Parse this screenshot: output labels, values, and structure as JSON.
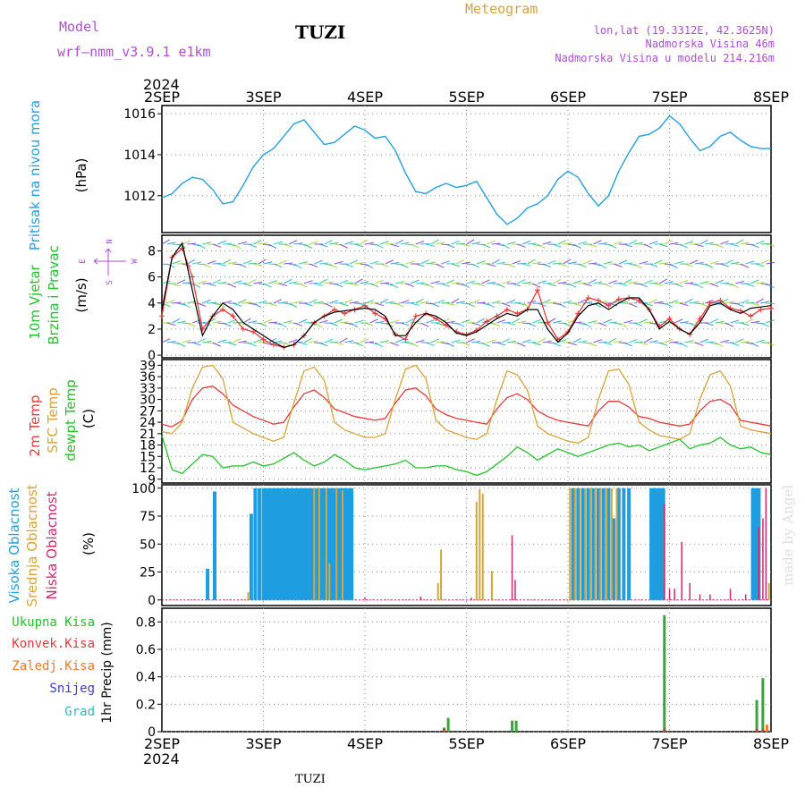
{
  "header": {
    "model_label": "Model",
    "model_name": "wrf—nmm_v3.9.1  e1km",
    "station": "TUZI",
    "meteogram": "Meteogram",
    "lonlat": "lon,lat (19.3312E, 42.3625N)",
    "altitude": "Nadmorska Visina 46m",
    "model_altitude": "Nadmorska Visina u modelu 214.216m",
    "year_top": "2024",
    "year_bottom": "2024",
    "footer_station": "TUZI",
    "credit": "made by Angel"
  },
  "colors": {
    "pressure": "#22a0e0",
    "wind_speed": "#000000",
    "wind_gust": "#e83030",
    "t2m": "#e83b3b",
    "sfc": "#d9a23a",
    "dewpt": "#22c22a",
    "high_cloud": "#1e9ee0",
    "mid_cloud": "#d4a63a",
    "low_cloud": "#d22a6e",
    "total_precip": "#3aa33a",
    "conv_precip": "#e03030",
    "froz_precip": "#f07a30",
    "snow": "#3b3bdb",
    "graupel": "#2ac0c0"
  },
  "chart_data": [
    {
      "type": "line",
      "panel": "pressure",
      "ylabel": [
        "Pritisak na nivou mora",
        "(hPa)"
      ],
      "ylim": [
        1010.2,
        1016.4
      ],
      "yticks": [
        "1012",
        "1014",
        "1016"
      ],
      "ytick_values": [
        1012,
        1014,
        1016
      ],
      "grid": true,
      "x_days": [
        2,
        2.1,
        2.2,
        2.3,
        2.4,
        2.5,
        2.6,
        2.7,
        2.8,
        2.9,
        3.0,
        3.1,
        3.2,
        3.3,
        3.4,
        3.5,
        3.6,
        3.7,
        3.8,
        3.9,
        4.0,
        4.1,
        4.2,
        4.3,
        4.4,
        4.5,
        4.6,
        4.7,
        4.8,
        4.9,
        5.0,
        5.1,
        5.2,
        5.3,
        5.4,
        5.5,
        5.6,
        5.7,
        5.8,
        5.9,
        6.0,
        6.1,
        6.2,
        6.3,
        6.4,
        6.5,
        6.6,
        6.7,
        6.8,
        6.9,
        7.0,
        7.1,
        7.2,
        7.3,
        7.4,
        7.5,
        7.6,
        7.7,
        7.8,
        7.9,
        8.0
      ],
      "values": [
        1011.9,
        1012.1,
        1012.6,
        1012.9,
        1012.8,
        1012.3,
        1011.6,
        1011.7,
        1012.5,
        1013.4,
        1014.0,
        1014.3,
        1014.9,
        1015.5,
        1015.7,
        1015.1,
        1014.5,
        1014.6,
        1015.0,
        1015.4,
        1015.2,
        1014.8,
        1014.9,
        1014.2,
        1013.1,
        1012.2,
        1012.1,
        1012.4,
        1012.6,
        1012.4,
        1012.5,
        1012.7,
        1011.9,
        1011.1,
        1010.6,
        1010.9,
        1011.4,
        1011.6,
        1012.0,
        1012.8,
        1013.2,
        1012.9,
        1012.1,
        1011.5,
        1012.0,
        1013.2,
        1014.1,
        1014.9,
        1015.0,
        1015.3,
        1015.9,
        1015.5,
        1014.8,
        1014.2,
        1014.4,
        1014.9,
        1015.1,
        1014.7,
        1014.4,
        1014.3,
        1014.3
      ]
    },
    {
      "type": "line",
      "panel": "wind",
      "ylabel": [
        "10m Vjetar",
        "Brzina i Pravac",
        "(m/s)"
      ],
      "ylim": [
        -0.2,
        9.2
      ],
      "yticks": [
        "0",
        "2",
        "4",
        "6",
        "8"
      ],
      "ytick_values": [
        0,
        2,
        4,
        6,
        8
      ],
      "compass": [
        "N",
        "E",
        "S",
        "W"
      ],
      "grid": true,
      "x_days": [
        2,
        2.1,
        2.2,
        2.3,
        2.4,
        2.5,
        2.6,
        2.7,
        2.8,
        2.9,
        3.0,
        3.1,
        3.2,
        3.3,
        3.4,
        3.5,
        3.6,
        3.7,
        3.8,
        3.9,
        4.0,
        4.1,
        4.2,
        4.3,
        4.4,
        4.5,
        4.6,
        4.7,
        4.8,
        4.9,
        5.0,
        5.1,
        5.2,
        5.3,
        5.4,
        5.5,
        5.6,
        5.7,
        5.8,
        5.9,
        6.0,
        6.1,
        6.2,
        6.3,
        6.4,
        6.5,
        6.6,
        6.7,
        6.8,
        6.9,
        7.0,
        7.1,
        7.2,
        7.3,
        7.4,
        7.5,
        7.6,
        7.7,
        7.8,
        7.9,
        8.0
      ],
      "series": [
        {
          "role": "speed",
          "values": [
            3.5,
            7.5,
            8.6,
            5.0,
            1.5,
            3.0,
            4.0,
            3.5,
            2.5,
            2.0,
            1.5,
            1.0,
            0.6,
            0.8,
            1.5,
            2.5,
            3.0,
            3.3,
            3.4,
            3.5,
            3.6,
            3.5,
            3.0,
            1.5,
            1.5,
            2.5,
            3.2,
            3.0,
            2.5,
            1.7,
            1.5,
            1.8,
            2.3,
            2.8,
            3.2,
            3.0,
            3.5,
            3.5,
            2.0,
            1.0,
            1.7,
            3.0,
            3.8,
            4.0,
            3.5,
            4.0,
            4.4,
            4.4,
            3.5,
            2.0,
            2.6,
            2.0,
            1.6,
            2.5,
            3.8,
            4.0,
            3.5,
            3.2,
            3.6,
            3.7,
            3.8
          ]
        },
        {
          "role": "gust",
          "values": [
            3.0,
            7.5,
            8.2,
            6.0,
            2.0,
            3.0,
            3.5,
            3.0,
            2.0,
            1.8,
            1.2,
            0.8,
            0.6,
            0.8,
            1.5,
            2.5,
            3.0,
            3.5,
            3.2,
            3.5,
            3.8,
            3.2,
            2.8,
            1.6,
            1.2,
            3.0,
            3.2,
            2.8,
            2.3,
            1.8,
            1.6,
            1.9,
            2.6,
            3.0,
            3.5,
            3.2,
            3.5,
            5.0,
            2.5,
            1.2,
            1.8,
            3.2,
            4.4,
            4.2,
            3.8,
            4.3,
            4.4,
            4.2,
            3.5,
            2.2,
            2.8,
            2.0,
            1.6,
            2.8,
            4.0,
            4.2,
            3.6,
            3.4,
            3.0,
            3.5,
            3.6
          ]
        }
      ]
    },
    {
      "type": "line",
      "panel": "temperature",
      "ylabel": [
        "2m Temp",
        "SFC Temp",
        "dewpt Temp",
        "(C)"
      ],
      "ylim": [
        8,
        40.5
      ],
      "yticks": [
        "9",
        "12",
        "15",
        "18",
        "21",
        "24",
        "27",
        "30",
        "33",
        "36",
        "39"
      ],
      "ytick_values": [
        9,
        12,
        15,
        18,
        21,
        24,
        27,
        30,
        33,
        36,
        39
      ],
      "grid": true,
      "x_days": [
        2,
        2.1,
        2.2,
        2.3,
        2.4,
        2.5,
        2.6,
        2.7,
        2.8,
        2.9,
        3.0,
        3.1,
        3.2,
        3.3,
        3.4,
        3.5,
        3.6,
        3.7,
        3.8,
        3.9,
        4.0,
        4.1,
        4.2,
        4.3,
        4.4,
        4.5,
        4.6,
        4.7,
        4.8,
        4.9,
        5.0,
        5.1,
        5.2,
        5.3,
        5.4,
        5.5,
        5.6,
        5.7,
        5.8,
        5.9,
        6.0,
        6.1,
        6.2,
        6.3,
        6.4,
        6.5,
        6.6,
        6.7,
        6.8,
        6.9,
        7.0,
        7.1,
        7.2,
        7.3,
        7.4,
        7.5,
        7.6,
        7.7,
        7.8,
        7.9,
        8.0
      ],
      "series": [
        {
          "role": "2m",
          "values": [
            23.5,
            22.8,
            24.5,
            30.0,
            33.0,
            33.5,
            31.5,
            28.5,
            27.0,
            25.5,
            24.5,
            23.5,
            24.0,
            28.0,
            31.5,
            32.5,
            30.5,
            27.5,
            26.5,
            25.5,
            25.0,
            24.5,
            25.0,
            29.0,
            32.5,
            33.0,
            31.0,
            27.5,
            26.0,
            25.0,
            24.5,
            24.0,
            23.5,
            27.5,
            30.5,
            31.5,
            30.0,
            27.0,
            25.5,
            24.5,
            24.0,
            23.5,
            23.0,
            27.0,
            29.5,
            29.5,
            28.0,
            25.5,
            25.0,
            24.0,
            23.5,
            23.0,
            23.5,
            27.0,
            29.5,
            30.0,
            28.5,
            24.5,
            24.0,
            23.5,
            23.0
          ]
        },
        {
          "role": "sfc",
          "values": [
            21.5,
            21.0,
            24.0,
            33.0,
            38.5,
            39.0,
            35.5,
            24.0,
            22.5,
            21.0,
            20.0,
            19.0,
            20.0,
            29.0,
            37.5,
            38.5,
            35.0,
            24.0,
            22.0,
            21.0,
            20.0,
            20.0,
            21.0,
            30.0,
            38.0,
            39.0,
            35.5,
            24.5,
            22.0,
            21.0,
            20.0,
            19.5,
            21.0,
            30.0,
            37.5,
            36.5,
            32.5,
            23.0,
            21.0,
            20.0,
            19.0,
            18.5,
            20.0,
            30.0,
            37.5,
            38.0,
            34.0,
            24.0,
            22.0,
            20.5,
            20.0,
            19.5,
            21.0,
            30.0,
            36.5,
            37.5,
            33.5,
            23.0,
            22.0,
            21.5,
            21.0
          ]
        },
        {
          "role": "dewpt",
          "values": [
            20.5,
            11.5,
            10.5,
            13.0,
            15.5,
            15.0,
            12.0,
            12.5,
            12.5,
            13.5,
            12.5,
            13.0,
            14.5,
            16.0,
            14.0,
            12.5,
            13.5,
            15.5,
            14.0,
            12.0,
            11.5,
            12.0,
            12.5,
            13.0,
            14.0,
            12.0,
            12.0,
            12.5,
            12.5,
            11.5,
            11.0,
            10.0,
            11.0,
            13.0,
            15.0,
            17.5,
            16.0,
            14.0,
            15.5,
            17.0,
            16.0,
            15.0,
            16.0,
            17.0,
            18.0,
            18.5,
            17.5,
            18.0,
            16.5,
            17.5,
            18.5,
            19.5,
            17.0,
            18.0,
            18.5,
            20.0,
            18.0,
            17.0,
            17.5,
            16.0,
            15.5
          ]
        }
      ]
    },
    {
      "type": "bar",
      "panel": "clouds",
      "ylabel": [
        "Visoka Oblacnost",
        "Srednja Oblacnost",
        "Niska Oblacnost",
        "(%)"
      ],
      "ylim": [
        -5,
        103
      ],
      "yticks": [
        "0",
        "25",
        "50",
        "75",
        "100"
      ],
      "ytick_values": [
        0,
        25,
        50,
        75,
        100
      ],
      "grid": true,
      "series": [
        {
          "role": "high",
          "x_days": [
            2.45,
            2.52,
            2.88,
            2.92,
            2.96,
            3.0,
            3.03,
            3.06,
            3.09,
            3.12,
            3.15,
            3.18,
            3.21,
            3.24,
            3.27,
            3.3,
            3.33,
            3.36,
            3.39,
            3.42,
            3.45,
            3.48,
            3.51,
            3.54,
            3.57,
            3.6,
            3.63,
            3.66,
            3.69,
            3.72,
            3.75,
            3.78,
            3.81,
            3.84,
            3.87,
            6.05,
            6.1,
            6.15,
            6.2,
            6.25,
            6.3,
            6.35,
            6.4,
            6.45,
            6.5,
            6.55,
            6.6,
            6.82,
            6.85,
            6.88,
            6.91,
            6.94,
            7.82,
            7.85,
            7.88
          ],
          "values": [
            28,
            97,
            77,
            100,
            100,
            100,
            100,
            100,
            100,
            100,
            100,
            100,
            100,
            100,
            100,
            100,
            100,
            100,
            100,
            100,
            100,
            100,
            100,
            100,
            100,
            100,
            100,
            100,
            100,
            100,
            100,
            100,
            100,
            100,
            100,
            100,
            100,
            100,
            100,
            100,
            100,
            100,
            100,
            73,
            100,
            100,
            100,
            100,
            100,
            100,
            100,
            100,
            100,
            100,
            100
          ]
        },
        {
          "role": "mid",
          "x_days": [
            2.85,
            3.5,
            3.55,
            3.62,
            3.65,
            3.72,
            3.78,
            4.72,
            4.75,
            5.1,
            5.13,
            5.16,
            5.25,
            6.02,
            6.07,
            6.12,
            6.17,
            6.22,
            6.27,
            6.32,
            6.38,
            6.43,
            6.48,
            7.98
          ],
          "values": [
            7,
            100,
            100,
            100,
            33,
            100,
            98,
            15,
            45,
            88,
            99,
            95,
            26,
            100,
            100,
            100,
            100,
            100,
            100,
            100,
            100,
            100,
            100,
            15
          ]
        },
        {
          "role": "low",
          "x_days": [
            4.0,
            4.55,
            5.05,
            5.45,
            5.48,
            6.95,
            7.0,
            7.05,
            7.12,
            7.2,
            7.3,
            7.4,
            7.6,
            7.75,
            7.88,
            7.92,
            7.95
          ],
          "values": [
            2,
            3,
            2,
            58,
            18,
            86,
            10,
            10,
            52,
            15,
            5,
            5,
            10,
            5,
            65,
            73,
            100
          ]
        }
      ]
    },
    {
      "type": "bar",
      "panel": "precip",
      "ylabel": [
        "Ukupna Kisa",
        "Konvek.Kisa",
        "Zaledj.Kisa",
        "Snijeg",
        "Grad",
        "1hr Precip (mm)"
      ],
      "ylim": [
        0,
        0.9
      ],
      "yticks": [
        "0",
        "0.2",
        "0.4",
        "0.6",
        "0.8"
      ],
      "ytick_values": [
        0,
        0.2,
        0.4,
        0.6,
        0.8
      ],
      "grid": true,
      "series": [
        {
          "role": "total",
          "x_days": [
            4.78,
            4.82,
            5.45,
            5.49,
            6.95,
            7.86,
            7.92
          ],
          "values": [
            0.03,
            0.1,
            0.08,
            0.08,
            0.85,
            0.23,
            0.39
          ]
        },
        {
          "role": "convective",
          "x_days": [
            4.78,
            6.95,
            7.86,
            7.92
          ],
          "values": [
            0.02,
            0.02,
            0.02,
            0.02
          ]
        },
        {
          "role": "frozen",
          "x_days": [
            7.96
          ],
          "values": [
            0.05
          ]
        }
      ]
    }
  ],
  "x_axis": {
    "top_labels": [
      "2SEP",
      "3SEP",
      "4SEP",
      "5SEP",
      "6SEP",
      "7SEP",
      "8SEP"
    ],
    "bottom_labels": [
      "2SEP",
      "3SEP",
      "4SEP",
      "5SEP",
      "6SEP",
      "7SEP",
      "8SEP"
    ],
    "xlim": [
      2,
      8
    ]
  }
}
